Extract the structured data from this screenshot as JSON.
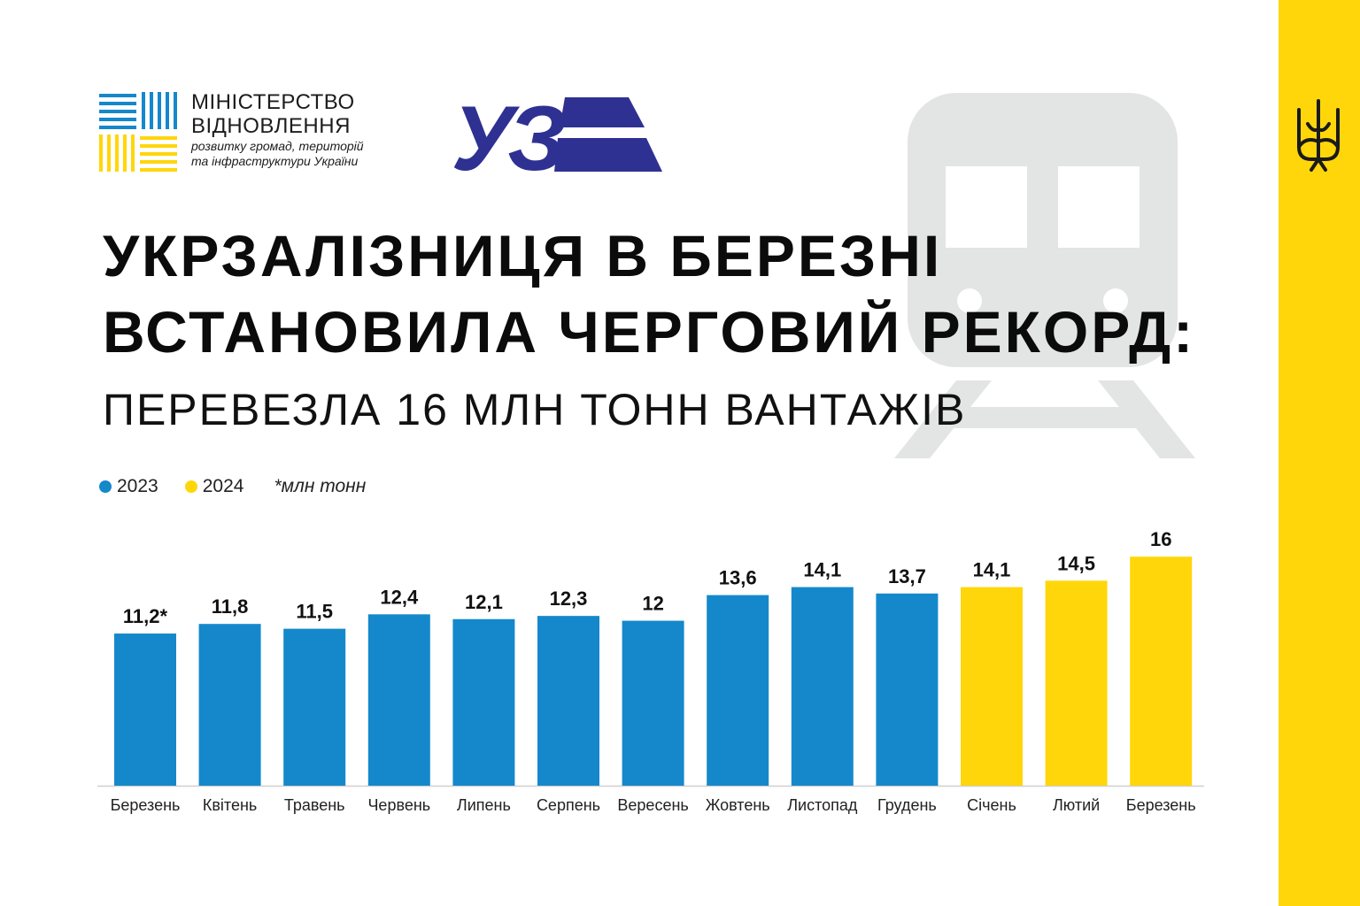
{
  "branding": {
    "ministry_name_line1": "МІНІСТЕРСТВО",
    "ministry_name_line2": "ВІДНОВЛЕННЯ",
    "ministry_sub_line1": "розвитку громад, територій",
    "ministry_sub_line2": "та інфраструктури України",
    "uz_logo_text": "УЗ"
  },
  "headline": {
    "line1": "УКРЗАЛІЗНИЦЯ В БЕРЕЗНІ",
    "line2": "ВСТАНОВИЛА ЧЕРГОВИЙ РЕКОРД:",
    "subtitle": "ПЕРЕВЕЗЛА 16 МЛН ТОНН ВАНТАЖІВ"
  },
  "legend": {
    "series1": "2023",
    "series2": "2024",
    "unit": "*млн тонн"
  },
  "colors": {
    "blue": "#1588cb",
    "yellow": "#ffd60a",
    "logo_blue": "#2e3192",
    "stripe": "#ffd60a",
    "train_gray": "#e3e4e4"
  },
  "chart_data": {
    "type": "bar",
    "categories": [
      "Березень",
      "Квітень",
      "Травень",
      "Червень",
      "Липень",
      "Серпень",
      "Вересень",
      "Жовтень",
      "Листопад",
      "Грудень",
      "Січень",
      "Лютий",
      "Березень"
    ],
    "values": [
      11.2,
      11.8,
      11.5,
      12.4,
      12.1,
      12.3,
      12,
      13.6,
      14.1,
      13.7,
      14.1,
      14.5,
      16
    ],
    "value_labels": [
      "11,2*",
      "11,8",
      "11,5",
      "12,4",
      "12,1",
      "12,3",
      "12",
      "13,6",
      "14,1",
      "13,7",
      "14,1",
      "14,5",
      "16"
    ],
    "series_of_bar": [
      "2023",
      "2023",
      "2023",
      "2023",
      "2023",
      "2023",
      "2023",
      "2023",
      "2023",
      "2023",
      "2024",
      "2024",
      "2024"
    ],
    "ylim": [
      0,
      16
    ],
    "grid": false,
    "legend_position": "top-left"
  }
}
